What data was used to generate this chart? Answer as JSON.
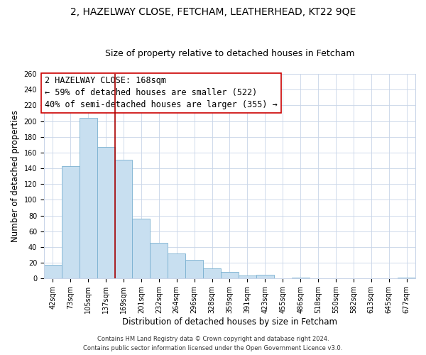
{
  "title": "2, HAZELWAY CLOSE, FETCHAM, LEATHERHEAD, KT22 9QE",
  "subtitle": "Size of property relative to detached houses in Fetcham",
  "xlabel": "Distribution of detached houses by size in Fetcham",
  "ylabel": "Number of detached properties",
  "bin_labels": [
    "42sqm",
    "73sqm",
    "105sqm",
    "137sqm",
    "169sqm",
    "201sqm",
    "232sqm",
    "264sqm",
    "296sqm",
    "328sqm",
    "359sqm",
    "391sqm",
    "423sqm",
    "455sqm",
    "486sqm",
    "518sqm",
    "550sqm",
    "582sqm",
    "613sqm",
    "645sqm",
    "677sqm"
  ],
  "bar_heights": [
    17,
    143,
    204,
    167,
    151,
    76,
    45,
    32,
    24,
    13,
    8,
    4,
    5,
    0,
    1,
    0,
    0,
    0,
    0,
    0,
    1
  ],
  "bar_color": "#c8dff0",
  "bar_edge_color": "#7ab0d0",
  "vline_color": "#aa0000",
  "annotation_line1": "2 HAZELWAY CLOSE: 168sqm",
  "annotation_line2": "← 59% of detached houses are smaller (522)",
  "annotation_line3": "40% of semi-detached houses are larger (355) →",
  "footer1": "Contains HM Land Registry data © Crown copyright and database right 2024.",
  "footer2": "Contains public sector information licensed under the Open Government Licence v3.0.",
  "ylim": [
    0,
    260
  ],
  "yticks": [
    0,
    20,
    40,
    60,
    80,
    100,
    120,
    140,
    160,
    180,
    200,
    220,
    240,
    260
  ],
  "background_color": "#ffffff",
  "grid_color": "#c8d4e8",
  "title_fontsize": 10,
  "subtitle_fontsize": 9,
  "axis_label_fontsize": 8.5,
  "tick_fontsize": 7,
  "annotation_fontsize": 8.5,
  "footer_fontsize": 6
}
